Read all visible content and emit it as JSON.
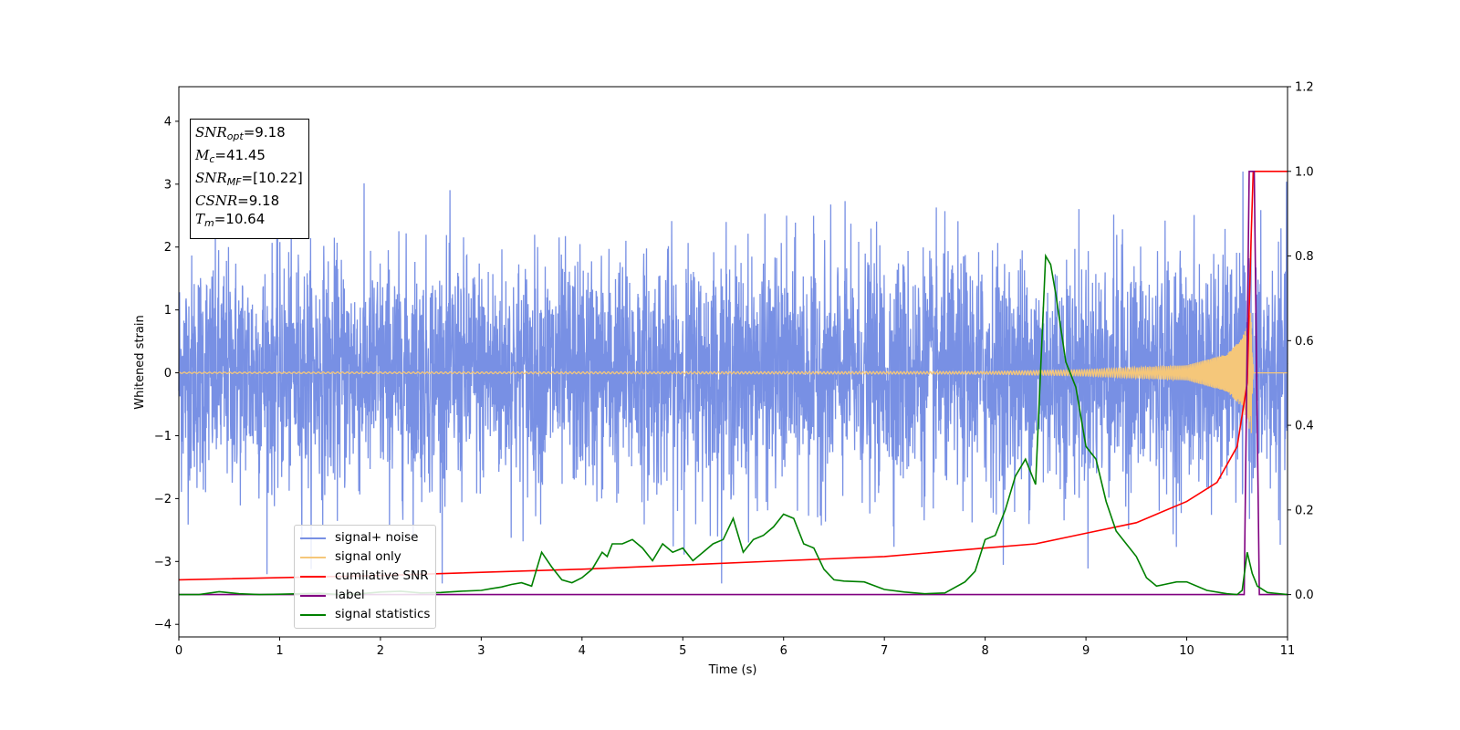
{
  "chart_data": {
    "type": "line",
    "xlabel": "Time (s)",
    "ylabel": "Whitened strain",
    "xlim": [
      0,
      11
    ],
    "ylim_left": [
      -4.2,
      4.55
    ],
    "ylim_right": [
      -0.1,
      1.2
    ],
    "x_ticks": [
      "0",
      "1",
      "2",
      "3",
      "4",
      "5",
      "6",
      "7",
      "8",
      "9",
      "10",
      "11"
    ],
    "y_ticks_left": [
      "−4",
      "−3",
      "−2",
      "−1",
      "0",
      "1",
      "2",
      "3",
      "4"
    ],
    "y_ticks_right": [
      "0.0",
      "0.2",
      "0.4",
      "0.6",
      "0.8",
      "1.0",
      "1.2"
    ],
    "legend_position": "lower-left",
    "series": [
      {
        "name": "signal+ noise",
        "color": "#7890e4",
        "axis": "left",
        "description_values": {
          "noise_band": [
            -2.2,
            2.2
          ],
          "peak_max": 3.2,
          "peak_min": -3.35
        }
      },
      {
        "name": "signal only",
        "color": "#f5c77a",
        "axis": "left",
        "x": [
          0,
          8,
          9,
          10,
          10.4,
          10.55,
          10.64,
          10.66
        ],
        "envelope": [
          0.01,
          0.02,
          0.05,
          0.12,
          0.3,
          0.55,
          1.0,
          0.0
        ]
      },
      {
        "name": "cumilative SNR",
        "color": "#ff0000",
        "axis": "right",
        "x": [
          0,
          2,
          4,
          6,
          7,
          8,
          8.5,
          9,
          9.5,
          10,
          10.3,
          10.5,
          10.6,
          10.64,
          10.66,
          11
        ],
        "values": [
          0.035,
          0.045,
          0.06,
          0.08,
          0.09,
          0.11,
          0.12,
          0.145,
          0.17,
          0.22,
          0.265,
          0.35,
          0.5,
          0.85,
          1.0,
          1.0
        ]
      },
      {
        "name": "label",
        "color": "#800080",
        "axis": "right",
        "x": [
          0,
          10.57,
          10.62,
          10.67,
          10.72,
          11
        ],
        "values": [
          0,
          0,
          1.0,
          1.0,
          0,
          0
        ]
      },
      {
        "name": "signal statistics",
        "color": "#008000",
        "axis": "right",
        "x": [
          0,
          0.2,
          0.4,
          0.6,
          0.8,
          1.0,
          1.2,
          1.4,
          1.6,
          1.8,
          2.0,
          2.2,
          2.4,
          2.6,
          2.8,
          3.0,
          3.1,
          3.2,
          3.3,
          3.4,
          3.5,
          3.6,
          3.7,
          3.8,
          3.9,
          4.0,
          4.1,
          4.2,
          4.25,
          4.3,
          4.4,
          4.5,
          4.6,
          4.7,
          4.8,
          4.9,
          5.0,
          5.1,
          5.2,
          5.3,
          5.4,
          5.5,
          5.6,
          5.7,
          5.8,
          5.9,
          6.0,
          6.1,
          6.2,
          6.3,
          6.4,
          6.5,
          6.6,
          6.8,
          7.0,
          7.2,
          7.4,
          7.6,
          7.8,
          7.9,
          8.0,
          8.1,
          8.2,
          8.3,
          8.4,
          8.5,
          8.6,
          8.65,
          8.7,
          8.8,
          8.9,
          9.0,
          9.1,
          9.2,
          9.3,
          9.4,
          9.5,
          9.6,
          9.7,
          9.8,
          9.9,
          10.0,
          10.2,
          10.4,
          10.5,
          10.55,
          10.6,
          10.65,
          10.7,
          10.8,
          11
        ],
        "values": [
          0,
          0,
          0.007,
          0.002,
          0,
          0.001,
          0.002,
          0.003,
          0,
          0.002,
          0.006,
          0.008,
          0.004,
          0.005,
          0.008,
          0.01,
          0.014,
          0.018,
          0.024,
          0.028,
          0.02,
          0.1,
          0.065,
          0.035,
          0.028,
          0.04,
          0.06,
          0.1,
          0.09,
          0.12,
          0.12,
          0.13,
          0.11,
          0.08,
          0.12,
          0.1,
          0.11,
          0.08,
          0.1,
          0.12,
          0.13,
          0.18,
          0.1,
          0.13,
          0.14,
          0.16,
          0.19,
          0.18,
          0.12,
          0.11,
          0.06,
          0.035,
          0.032,
          0.03,
          0.012,
          0.006,
          0.002,
          0.004,
          0.03,
          0.055,
          0.13,
          0.14,
          0.2,
          0.28,
          0.32,
          0.26,
          0.8,
          0.78,
          0.71,
          0.55,
          0.49,
          0.35,
          0.32,
          0.22,
          0.15,
          0.12,
          0.09,
          0.04,
          0.02,
          0.025,
          0.03,
          0.03,
          0.01,
          0.002,
          0.0,
          0.01,
          0.1,
          0.05,
          0.02,
          0.005,
          0
        ]
      }
    ]
  },
  "annotation": {
    "snr_opt_value": "=9.18",
    "mc_value": "=41.45",
    "snr_mf_value": "=[10.22]",
    "csnr_value": "=9.18",
    "tm_value": "=10.64",
    "snr_label": "SNR",
    "opt_sub": "opt",
    "m_label": "M",
    "c_sub": "c",
    "mf_sub": "MF",
    "csnr_label": "CSNR",
    "t_label": "T",
    "m_sub": "m"
  }
}
